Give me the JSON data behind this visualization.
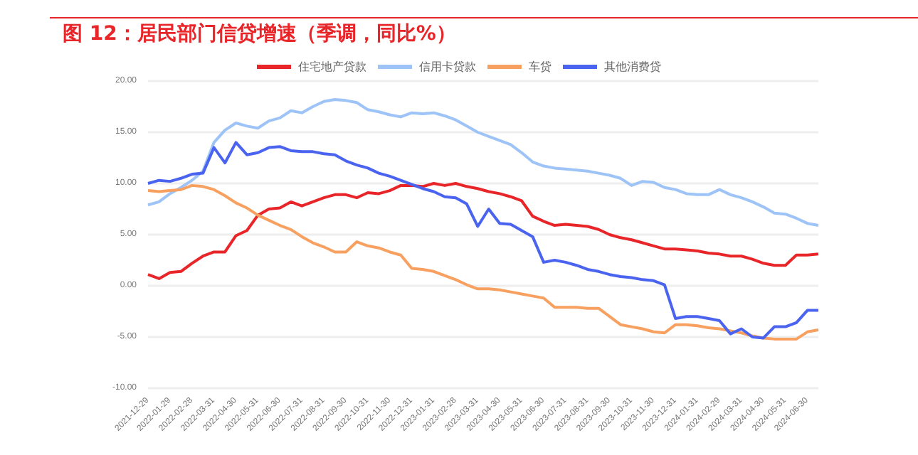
{
  "chart_data": {
    "type": "line",
    "title": "图 12：居民部门信贷增速（季调，同比%）",
    "categories": [
      "2021-12-29",
      null,
      "2022-01-29",
      null,
      "2022-02-28",
      null,
      "2022-03-31",
      null,
      "2022-04-30",
      null,
      "2022-05-31",
      null,
      "2022-06-30",
      null,
      "2022-07-31",
      null,
      "2022-08-31",
      null,
      "2022-09-30",
      null,
      "2022-10-31",
      null,
      "2022-11-30",
      null,
      "2022-12-31",
      null,
      "2023-01-31",
      null,
      "2023-02-28",
      null,
      "2023-03-31",
      null,
      "2023-04-30",
      null,
      "2023-05-31",
      null,
      "2023-06-30",
      null,
      "2023-07-31",
      null,
      "2023-08-31",
      null,
      "2023-09-30",
      null,
      "2023-10-31",
      null,
      "2023-11-30",
      null,
      "2023-12-31",
      null,
      "2024-01-31",
      null,
      "2024-02-29",
      null,
      "2024-03-31",
      null,
      "2024-04-30",
      null,
      "2024-05-31",
      null,
      "2024-06-30",
      null
    ],
    "series": [
      {
        "name": "住宅地产贷款",
        "color": "#e8262a",
        "values": [
          1.1,
          0.7,
          1.3,
          1.4,
          2.2,
          2.9,
          3.3,
          3.3,
          4.9,
          5.4,
          6.9,
          7.5,
          7.6,
          8.2,
          7.8,
          8.2,
          8.6,
          8.9,
          8.9,
          8.6,
          9.1,
          9.0,
          9.3,
          9.8,
          9.8,
          9.7,
          10.0,
          9.8,
          10.0,
          9.7,
          9.5,
          9.2,
          9.0,
          8.7,
          8.3,
          6.8,
          6.3,
          5.9,
          6.0,
          5.9,
          5.8,
          5.5,
          5.0,
          4.7,
          4.5,
          4.2,
          3.9,
          3.6,
          3.6,
          3.5,
          3.4,
          3.2,
          3.1,
          2.9,
          2.9,
          2.6,
          2.2,
          2.0,
          2.0,
          3.0,
          3.0,
          3.1
        ]
      },
      {
        "name": "信用卡贷款",
        "color": "#9dc3f7",
        "values": [
          7.9,
          8.2,
          9.0,
          9.6,
          10.3,
          11.2,
          14.0,
          15.2,
          15.9,
          15.6,
          15.4,
          16.1,
          16.4,
          17.1,
          16.9,
          17.5,
          18.0,
          18.2,
          18.1,
          17.9,
          17.2,
          17.0,
          16.7,
          16.5,
          16.9,
          16.8,
          16.9,
          16.6,
          16.2,
          15.6,
          15.0,
          14.6,
          14.2,
          13.8,
          13.0,
          12.1,
          11.7,
          11.5,
          11.4,
          11.3,
          11.2,
          11.0,
          10.8,
          10.5,
          9.8,
          10.2,
          10.1,
          9.6,
          9.4,
          9.0,
          8.9,
          8.9,
          9.4,
          8.9,
          8.6,
          8.2,
          7.7,
          7.1,
          7.0,
          6.6,
          6.1,
          5.9
        ]
      },
      {
        "name": "车贷",
        "color": "#f8a060",
        "values": [
          9.3,
          9.2,
          9.3,
          9.4,
          9.8,
          9.7,
          9.4,
          8.8,
          8.1,
          7.6,
          6.9,
          6.4,
          5.9,
          5.5,
          4.8,
          4.2,
          3.8,
          3.3,
          3.3,
          4.3,
          3.9,
          3.7,
          3.3,
          3.0,
          1.7,
          1.6,
          1.4,
          1.0,
          0.6,
          0.1,
          -0.3,
          -0.3,
          -0.4,
          -0.6,
          -0.8,
          -1.0,
          -1.2,
          -2.1,
          -2.1,
          -2.1,
          -2.2,
          -2.2,
          -3.0,
          -3.8,
          -4.0,
          -4.2,
          -4.5,
          -4.6,
          -3.8,
          -3.8,
          -3.9,
          -4.1,
          -4.2,
          -4.4,
          -4.6,
          -4.9,
          -5.1,
          -5.2,
          -5.2,
          -5.2,
          -4.5,
          -4.3
        ]
      },
      {
        "name": "其他消费贷",
        "color": "#4a64f0",
        "values": [
          10.0,
          10.3,
          10.2,
          10.5,
          10.9,
          11.0,
          13.5,
          12.0,
          14.0,
          12.8,
          13.0,
          13.5,
          13.6,
          13.2,
          13.1,
          13.1,
          12.9,
          12.8,
          12.2,
          11.8,
          11.5,
          11.0,
          10.7,
          10.3,
          9.9,
          9.5,
          9.2,
          8.7,
          8.6,
          8.0,
          5.8,
          7.5,
          6.1,
          6.0,
          5.4,
          4.8,
          2.3,
          2.5,
          2.3,
          2.0,
          1.6,
          1.4,
          1.1,
          0.9,
          0.8,
          0.6,
          0.5,
          0.1,
          -3.2,
          -3.0,
          -3.0,
          -3.2,
          -3.4,
          -4.7,
          -4.2,
          -5.0,
          -5.1,
          -4.0,
          -4.0,
          -3.6,
          -2.4,
          -2.4
        ]
      }
    ],
    "ylim": [
      -10,
      20
    ],
    "yticks": [
      {
        "value": -10,
        "label": "-10.00"
      },
      {
        "value": -5,
        "label": "-5.00"
      },
      {
        "value": 0,
        "label": "0.00"
      },
      {
        "value": 5,
        "label": "5.00"
      },
      {
        "value": 10,
        "label": "10.00"
      },
      {
        "value": 15,
        "label": "15.00"
      },
      {
        "value": 20,
        "label": "20.00"
      }
    ],
    "grid": "y",
    "legend": "top",
    "marker": "none",
    "line_style": "solid"
  }
}
